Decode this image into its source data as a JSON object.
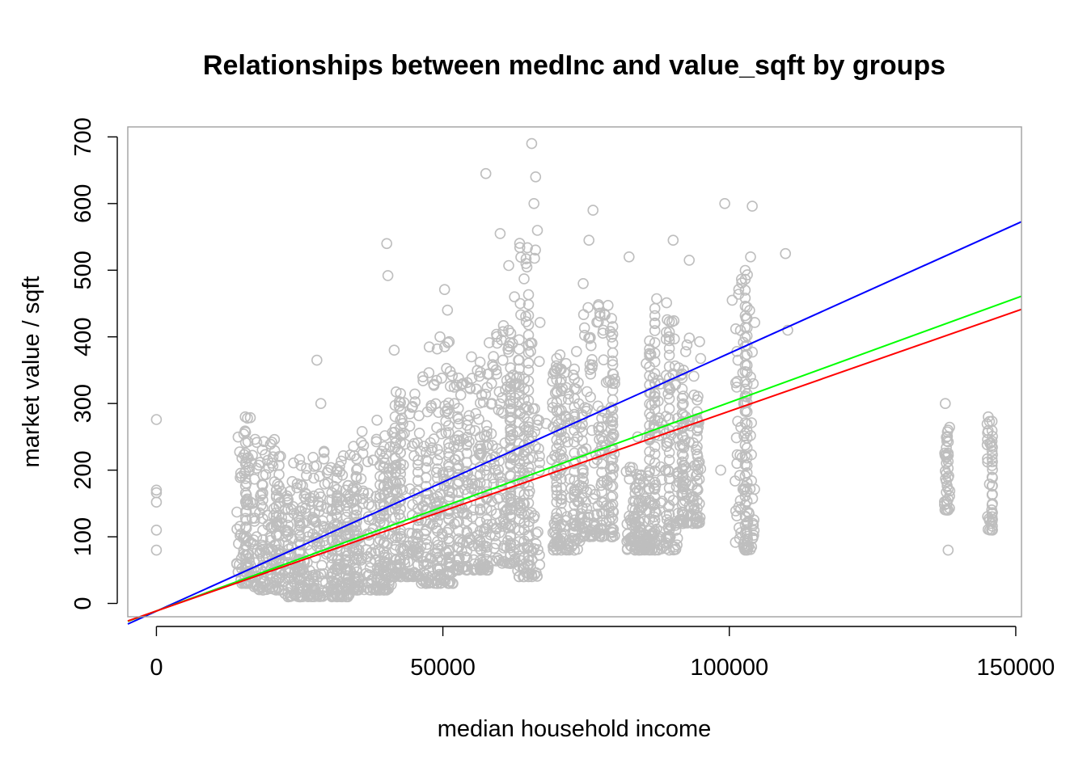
{
  "chart_data": {
    "type": "scatter",
    "title": "Relationships between medInc and value_sqft by groups",
    "xlabel": "median household income",
    "ylabel": "market value / sqft",
    "xlim": [
      -5000,
      151000
    ],
    "ylim": [
      -20,
      715
    ],
    "x_ticks": [
      0,
      50000,
      100000,
      150000
    ],
    "x_tick_labels": [
      "0",
      "50000",
      "100000",
      "150000"
    ],
    "y_ticks": [
      0,
      100,
      200,
      300,
      400,
      500,
      600,
      700
    ],
    "y_tick_labels": [
      "0",
      "100",
      "200",
      "300",
      "400",
      "500",
      "600",
      "700"
    ],
    "grid": false,
    "point_color": "#bebebe",
    "points_x": [
      0,
      0,
      0,
      0,
      0,
      0,
      14000,
      15500,
      16200,
      16800,
      17500,
      18400,
      19500,
      21000,
      22500,
      24000,
      26500,
      28000,
      28700,
      30000,
      31500,
      33000,
      35000,
      37000,
      38500,
      40200,
      40400,
      41500,
      43000,
      45000,
      46500,
      48000,
      49500,
      50300,
      50800,
      52000,
      53500,
      55000,
      56500,
      57500,
      58500,
      60000,
      61500,
      62500,
      63500,
      64500,
      65500,
      65900,
      66200,
      68000,
      70000,
      71500,
      73000,
      74500,
      75500,
      76200,
      78000,
      80000,
      82500,
      84000,
      85500,
      87000,
      88000,
      89500,
      90200,
      92000,
      93000,
      94500,
      98500,
      99200,
      100500,
      101500,
      102500,
      103000,
      103700,
      104000,
      109800,
      110200,
      137700,
      138000,
      138200,
      145200,
      145500,
      145700
    ],
    "points_y": [
      276,
      170,
      152,
      110,
      80,
      166,
      60,
      280,
      200,
      150,
      100,
      80,
      70,
      120,
      110,
      135,
      100,
      365,
      300,
      200,
      160,
      170,
      140,
      130,
      275,
      540,
      492,
      380,
      270,
      240,
      340,
      230,
      400,
      471,
      440,
      300,
      330,
      370,
      362,
      645,
      330,
      555,
      507,
      460,
      450,
      510,
      690,
      600,
      640,
      270,
      200,
      360,
      280,
      480,
      545,
      590,
      410,
      330,
      520,
      250,
      360,
      310,
      205,
      400,
      545,
      350,
      515,
      170,
      200,
      600,
      455,
      365,
      300,
      310,
      520,
      596,
      525,
      410,
      300,
      220,
      80,
      280,
      240,
      120
    ],
    "point_density": [
      {
        "x": [
          14000,
          17000
        ],
        "y": [
          30,
          280
        ]
      },
      {
        "x": [
          17000,
          22000
        ],
        "y": [
          20,
          250
        ]
      },
      {
        "x": [
          22000,
          28000
        ],
        "y": [
          10,
          220
        ]
      },
      {
        "x": [
          28000,
          34000
        ],
        "y": [
          10,
          240
        ]
      },
      {
        "x": [
          34000,
          41000
        ],
        "y": [
          20,
          260
        ]
      },
      {
        "x": [
          41000,
          46000
        ],
        "y": [
          40,
          320
        ]
      },
      {
        "x": [
          46000,
          52000
        ],
        "y": [
          30,
          400
        ]
      },
      {
        "x": [
          52000,
          58000
        ],
        "y": [
          50,
          350
        ]
      },
      {
        "x": [
          58000,
          63000
        ],
        "y": [
          60,
          420
        ]
      },
      {
        "x": [
          63000,
          67000
        ],
        "y": [
          40,
          560
        ]
      },
      {
        "x": [
          69000,
          74000
        ],
        "y": [
          80,
          380
        ]
      },
      {
        "x": [
          74000,
          80000
        ],
        "y": [
          100,
          450
        ]
      },
      {
        "x": [
          82000,
          86000
        ],
        "y": [
          80,
          210
        ]
      },
      {
        "x": [
          86000,
          91000
        ],
        "y": [
          80,
          460
        ]
      },
      {
        "x": [
          91000,
          95000
        ],
        "y": [
          120,
          400
        ]
      },
      {
        "x": [
          101000,
          104500
        ],
        "y": [
          80,
          520
        ]
      },
      {
        "x": [
          137500,
          138500
        ],
        "y": [
          140,
          275
        ]
      },
      {
        "x": [
          145000,
          146000
        ],
        "y": [
          110,
          285
        ]
      }
    ],
    "series": [
      {
        "color": "#0000ff",
        "intercept": -11.6,
        "slope": 0.00387
      },
      {
        "color": "#00ff00",
        "intercept": -11.3,
        "slope": 0.003128
      },
      {
        "color": "#ff0000",
        "intercept": -11.3,
        "slope": 0.002997
      }
    ]
  }
}
